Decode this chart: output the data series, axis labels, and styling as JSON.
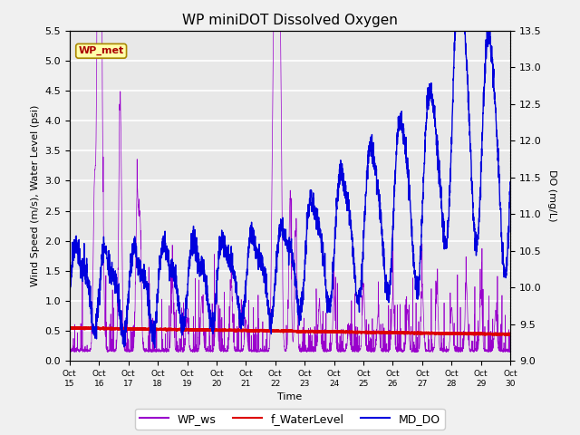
{
  "title": "WP miniDOT Dissolved Oxygen",
  "xlabel": "Time",
  "ylabel_left": "Wind Speed (m/s), Water Level (psi)",
  "ylabel_right": "DO (mg/L)",
  "ylim_left": [
    0.0,
    5.5
  ],
  "ylim_right": [
    9.0,
    13.5
  ],
  "yticks_left": [
    0.0,
    0.5,
    1.0,
    1.5,
    2.0,
    2.5,
    3.0,
    3.5,
    4.0,
    4.5,
    5.0,
    5.5
  ],
  "yticks_right": [
    9.0,
    9.5,
    10.0,
    10.5,
    11.0,
    11.5,
    12.0,
    12.5,
    13.0,
    13.5
  ],
  "xtick_labels": [
    "Oct 15",
    "Oct 16",
    "Oct 17",
    "Oct 18",
    "Oct 19",
    "Oct 20",
    "Oct 21",
    "Oct 22",
    "Oct 23",
    "Oct 24",
    "Oct 25",
    "Oct 26",
    "Oct 27",
    "Oct 28",
    "Oct 29",
    "Oct 30"
  ],
  "wp_ws_color": "#9900CC",
  "f_waterlevel_color": "#DD0000",
  "md_do_color": "#0000DD",
  "legend_labels": [
    "WP_ws",
    "f_WaterLevel",
    "MD_DO"
  ],
  "wp_met_label": "WP_met",
  "fig_bg_color": "#f0f0f0",
  "plot_bg_color": "#e8e8e8",
  "grid_color": "#ffffff",
  "title_fontsize": 11,
  "axis_fontsize": 8,
  "tick_fontsize": 8,
  "legend_fontsize": 9
}
